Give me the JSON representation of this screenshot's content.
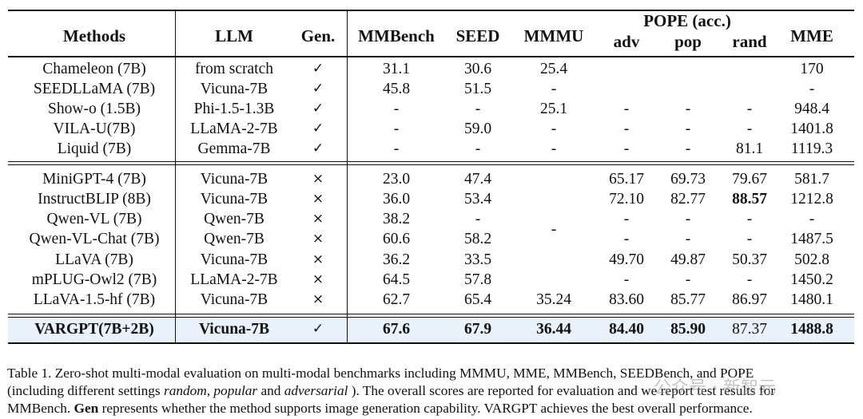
{
  "table": {
    "headers": {
      "methods": "Methods",
      "llm": "LLM",
      "gen": "Gen.",
      "mmbench": "MMBench",
      "seed": "SEED",
      "mmmu": "MMMU",
      "pope_group": "POPE (acc.)",
      "adv": "adv",
      "pop": "pop",
      "rand": "rand",
      "mme": "MME"
    },
    "rows": [
      {
        "method": "Chameleon (7B)",
        "llm": "from scratch",
        "gen": "✓",
        "mmbench": "31.1",
        "seed": "30.6",
        "mmmu": "25.4",
        "adv": "",
        "pop": "",
        "rand": "",
        "mme": "170"
      },
      {
        "method": "SEEDLLaMA (7B)",
        "llm": "Vicuna-7B",
        "gen": "✓",
        "mmbench": "45.8",
        "seed": "51.5",
        "mmmu": "-",
        "adv": "",
        "pop": "",
        "rand": "",
        "mme": "-"
      },
      {
        "method": "Show-o (1.5B)",
        "llm": "Phi-1.5-1.3B",
        "gen": "✓",
        "mmbench": "-",
        "seed": "-",
        "mmmu": "25.1",
        "adv": "-",
        "pop": "-",
        "rand": "-",
        "mme": "948.4"
      },
      {
        "method": "VILA-U(7B)",
        "llm": "LLaMA-2-7B",
        "gen": "✓",
        "mmbench": "-",
        "seed": "59.0",
        "mmmu": "-",
        "adv": "-",
        "pop": "-",
        "rand": "-",
        "mme": "1401.8"
      },
      {
        "method": "Liquid (7B)",
        "llm": "Gemma-7B",
        "gen": "✓",
        "mmbench": "-",
        "seed": "-",
        "mmmu": "-",
        "adv": "-",
        "pop": "-",
        "rand": "81.1",
        "mme": "1119.3"
      },
      {
        "method": "MiniGPT-4 (7B)",
        "llm": "Vicuna-7B",
        "gen": "×",
        "mmbench": "23.0",
        "seed": "47.4",
        "mmmu": "",
        "adv": "65.17",
        "pop": "69.73",
        "rand": "79.67",
        "mme": "581.7"
      },
      {
        "method": "InstructBLIP (8B)",
        "llm": "Vicuna-7B",
        "gen": "×",
        "mmbench": "36.0",
        "seed": "53.4",
        "mmmu": "",
        "adv": "72.10",
        "pop": "82.77",
        "rand": "88.57",
        "mme": "1212.8"
      },
      {
        "method": "Qwen-VL (7B)",
        "llm": "Qwen-7B",
        "gen": "×",
        "mmbench": "38.2",
        "seed": "-",
        "mmmu": "",
        "adv": "-",
        "pop": "-",
        "rand": "-",
        "mme": "-"
      },
      {
        "method": "Qwen-VL-Chat (7B)",
        "llm": "Qwen-7B",
        "gen": "×",
        "mmbench": "60.6",
        "seed": "58.2",
        "mmmu": "-",
        "adv": "-",
        "pop": "-",
        "rand": "-",
        "mme": "1487.5"
      },
      {
        "method": "LLaVA (7B)",
        "llm": "Vicuna-7B",
        "gen": "×",
        "mmbench": "36.2",
        "seed": "33.5",
        "mmmu": "",
        "adv": "49.70",
        "pop": "49.87",
        "rand": "50.37",
        "mme": "502.8"
      },
      {
        "method": "mPLUG-Owl2 (7B)",
        "llm": "LLaMA-2-7B",
        "gen": "×",
        "mmbench": "64.5",
        "seed": "57.8",
        "mmmu": "",
        "adv": "-",
        "pop": "-",
        "rand": "-",
        "mme": "1450.2"
      },
      {
        "method": "LLaVA-1.5-hf (7B)",
        "llm": "Vicuna-7B",
        "gen": "×",
        "mmbench": "62.7",
        "seed": "65.4",
        "mmmu": "35.24",
        "adv": "83.60",
        "pop": "85.77",
        "rand": "86.97",
        "mme": "1480.1"
      },
      {
        "method": "VARGPT(7B+2B)",
        "llm": "Vicuna-7B",
        "gen": "✓",
        "mmbench": "67.6",
        "seed": "67.9",
        "mmmu": "36.44",
        "adv": "84.40",
        "pop": "85.90",
        "rand": "87.37",
        "mme": "1488.8"
      }
    ],
    "bold_cells": [
      {
        "row": 6,
        "col": "rand"
      },
      {
        "row": 12,
        "col": "method"
      },
      {
        "row": 12,
        "col": "llm"
      },
      {
        "row": 12,
        "col": "mmbench"
      },
      {
        "row": 12,
        "col": "seed"
      },
      {
        "row": 12,
        "col": "mmmu"
      },
      {
        "row": 12,
        "col": "adv"
      },
      {
        "row": 12,
        "col": "pop"
      },
      {
        "row": 12,
        "col": "mme"
      }
    ],
    "highlight_row": 12,
    "highlight_color": "#e9f1fa"
  },
  "caption": {
    "line1": "Table 1. Zero-shot multi-modal evaluation on multi-modal benchmarks including MMMU, MME, MMBench, SEEDBench, and POPE",
    "line2_a": "(including different settings ",
    "line2_random": "random",
    "line2_b": ", ",
    "line2_popular": "popular",
    "line2_c": " and ",
    "line2_adversarial": "adversarial",
    "line2_d": " ). The overall scores are reported for evaluation and we report test results for",
    "line3_a": "MMBench. ",
    "line3_gen": "Gen",
    "line3_b": " represents whether the method supports image generation capability. VARGPT achieves the best overall performance."
  },
  "watermark": "公众号 · 新智元"
}
